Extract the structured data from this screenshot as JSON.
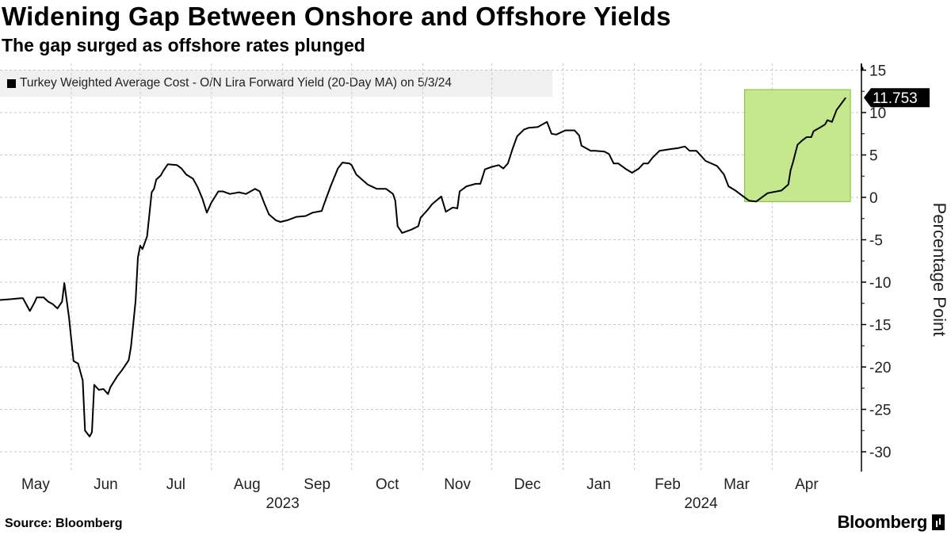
{
  "title": "Widening Gap Between Onshore and Offshore Yields",
  "subtitle": "The gap surged as offshore rates plunged",
  "source": "Source: Bloomberg",
  "logo": "Bloomberg",
  "chart_data": {
    "type": "line",
    "title": "Widening Gap Between Onshore and Offshore Yields",
    "subtitle": "The gap surged as offshore rates plunged",
    "ylabel": "Percentage Point",
    "ylim": [
      -32,
      16
    ],
    "yticks": [
      15,
      10,
      5,
      0,
      -5,
      -10,
      -15,
      -20,
      -25,
      -30
    ],
    "xlim": [
      "2023-05-01",
      "2024-05-13"
    ],
    "xtick_labels": [
      {
        "label": "May",
        "month": "2023-05"
      },
      {
        "label": "Jun",
        "month": "2023-06"
      },
      {
        "label": "Jul",
        "month": "2023-07"
      },
      {
        "label": "Aug",
        "month": "2023-08"
      },
      {
        "label": "Sep",
        "month": "2023-09"
      },
      {
        "label": "Oct",
        "month": "2023-10"
      },
      {
        "label": "Nov",
        "month": "2023-11"
      },
      {
        "label": "Dec",
        "month": "2023-12"
      },
      {
        "label": "Jan",
        "month": "2024-01"
      },
      {
        "label": "Feb",
        "month": "2024-02"
      },
      {
        "label": "Mar",
        "month": "2024-03"
      },
      {
        "label": "Apr",
        "month": "2024-04"
      }
    ],
    "year_labels": [
      {
        "label": "2023",
        "date": "2023-09-01"
      },
      {
        "label": "2024",
        "date": "2024-03-01"
      }
    ],
    "grid": true,
    "legend_position": "top-left",
    "series": [
      {
        "name": "Turkey Weighted Average Cost - O/N Lira Forward Yield (20-Day MA) on 5/3/24",
        "color": "#000000",
        "last_value_label": "11.753",
        "points": [
          [
            "2023-05-01",
            -12.1
          ],
          [
            "2023-05-06",
            -12.0
          ],
          [
            "2023-05-10",
            -11.9
          ],
          [
            "2023-05-11",
            -11.9
          ],
          [
            "2023-05-14",
            -13.4
          ],
          [
            "2023-05-16",
            -12.4
          ],
          [
            "2023-05-17",
            -11.8
          ],
          [
            "2023-05-20",
            -11.8
          ],
          [
            "2023-05-22",
            -12.3
          ],
          [
            "2023-05-24",
            -12.6
          ],
          [
            "2023-05-26",
            -13.1
          ],
          [
            "2023-05-28",
            -12.3
          ],
          [
            "2023-05-29",
            -10.1
          ],
          [
            "2023-05-31",
            -14.1
          ],
          [
            "2023-06-02",
            -19.3
          ],
          [
            "2023-06-04",
            -19.6
          ],
          [
            "2023-06-06",
            -21.6
          ],
          [
            "2023-06-07",
            -27.5
          ],
          [
            "2023-06-09",
            -28.2
          ],
          [
            "2023-06-10",
            -27.7
          ],
          [
            "2023-06-11",
            -22.1
          ],
          [
            "2023-06-13",
            -22.7
          ],
          [
            "2023-06-15",
            -22.6
          ],
          [
            "2023-06-17",
            -23.2
          ],
          [
            "2023-06-18",
            -22.4
          ],
          [
            "2023-06-21",
            -21.1
          ],
          [
            "2023-06-23",
            -20.4
          ],
          [
            "2023-06-26",
            -19.2
          ],
          [
            "2023-06-27",
            -17.6
          ],
          [
            "2023-06-29",
            -12.2
          ],
          [
            "2023-06-30",
            -7.1
          ],
          [
            "2023-07-01",
            -5.7
          ],
          [
            "2023-07-02",
            -6.1
          ],
          [
            "2023-07-04",
            -4.6
          ],
          [
            "2023-07-06",
            0.6
          ],
          [
            "2023-07-07",
            1.0
          ],
          [
            "2023-07-08",
            2.1
          ],
          [
            "2023-07-10",
            2.6
          ],
          [
            "2023-07-11",
            3.1
          ],
          [
            "2023-07-13",
            3.9
          ],
          [
            "2023-07-17",
            3.8
          ],
          [
            "2023-07-19",
            3.4
          ],
          [
            "2023-07-21",
            2.7
          ],
          [
            "2023-07-24",
            2.2
          ],
          [
            "2023-07-26",
            1.2
          ],
          [
            "2023-07-28",
            -0.1
          ],
          [
            "2023-07-30",
            -1.8
          ],
          [
            "2023-08-01",
            -0.6
          ],
          [
            "2023-08-04",
            0.7
          ],
          [
            "2023-08-06",
            0.7
          ],
          [
            "2023-08-09",
            0.4
          ],
          [
            "2023-08-11",
            0.5
          ],
          [
            "2023-08-13",
            0.6
          ],
          [
            "2023-08-16",
            0.4
          ],
          [
            "2023-08-18",
            0.7
          ],
          [
            "2023-08-20",
            1.0
          ],
          [
            "2023-08-22",
            0.7
          ],
          [
            "2023-08-24",
            -0.7
          ],
          [
            "2023-08-26",
            -2.0
          ],
          [
            "2023-08-29",
            -2.7
          ],
          [
            "2023-08-31",
            -2.9
          ],
          [
            "2023-09-03",
            -2.7
          ],
          [
            "2023-09-07",
            -2.3
          ],
          [
            "2023-09-11",
            -2.2
          ],
          [
            "2023-09-14",
            -1.8
          ],
          [
            "2023-09-18",
            -1.6
          ],
          [
            "2023-09-19",
            -0.8
          ],
          [
            "2023-09-22",
            1.4
          ],
          [
            "2023-09-25",
            3.4
          ],
          [
            "2023-09-27",
            4.1
          ],
          [
            "2023-09-30",
            4.0
          ],
          [
            "2023-10-01",
            3.8
          ],
          [
            "2023-10-03",
            2.7
          ],
          [
            "2023-10-08",
            1.5
          ],
          [
            "2023-10-12",
            1.0
          ],
          [
            "2023-10-16",
            1.0
          ],
          [
            "2023-10-19",
            0.4
          ],
          [
            "2023-10-20",
            -0.4
          ],
          [
            "2023-10-21",
            -3.4
          ],
          [
            "2023-10-23",
            -4.2
          ],
          [
            "2023-10-27",
            -3.8
          ],
          [
            "2023-10-30",
            -3.4
          ],
          [
            "2023-10-31",
            -2.4
          ],
          [
            "2023-11-03",
            -1.5
          ],
          [
            "2023-11-05",
            -0.8
          ],
          [
            "2023-11-09",
            0.1
          ],
          [
            "2023-11-11",
            -1.7
          ],
          [
            "2023-11-14",
            -1.2
          ],
          [
            "2023-11-16",
            -1.3
          ],
          [
            "2023-11-17",
            0.7
          ],
          [
            "2023-11-20",
            1.3
          ],
          [
            "2023-11-24",
            1.6
          ],
          [
            "2023-11-26",
            1.6
          ],
          [
            "2023-11-28",
            3.3
          ],
          [
            "2023-12-01",
            3.6
          ],
          [
            "2023-12-04",
            3.8
          ],
          [
            "2023-12-06",
            3.4
          ],
          [
            "2023-12-08",
            4.0
          ],
          [
            "2023-12-10",
            5.7
          ],
          [
            "2023-12-12",
            7.2
          ],
          [
            "2023-12-15",
            8.0
          ],
          [
            "2023-12-17",
            8.2
          ],
          [
            "2023-12-21",
            8.3
          ],
          [
            "2023-12-25",
            8.9
          ],
          [
            "2023-12-27",
            7.5
          ],
          [
            "2023-12-29",
            7.4
          ],
          [
            "2024-01-02",
            7.9
          ],
          [
            "2024-01-06",
            7.9
          ],
          [
            "2024-01-08",
            7.3
          ],
          [
            "2024-01-09",
            6.1
          ],
          [
            "2024-01-13",
            5.5
          ],
          [
            "2024-01-15",
            5.5
          ],
          [
            "2024-01-19",
            5.4
          ],
          [
            "2024-01-21",
            5.1
          ],
          [
            "2024-01-23",
            4.0
          ],
          [
            "2024-01-25",
            4.0
          ],
          [
            "2024-01-28",
            3.4
          ],
          [
            "2024-01-31",
            2.9
          ],
          [
            "2024-02-03",
            3.4
          ],
          [
            "2024-02-05",
            4.0
          ],
          [
            "2024-02-07",
            4.0
          ],
          [
            "2024-02-09",
            4.7
          ],
          [
            "2024-02-12",
            5.5
          ],
          [
            "2024-02-17",
            5.7
          ],
          [
            "2024-02-20",
            5.8
          ],
          [
            "2024-02-23",
            6.0
          ],
          [
            "2024-02-25",
            5.5
          ],
          [
            "2024-02-28",
            5.5
          ],
          [
            "2024-03-03",
            4.3
          ],
          [
            "2024-03-08",
            3.7
          ],
          [
            "2024-03-11",
            2.7
          ],
          [
            "2024-03-13",
            1.3
          ],
          [
            "2024-03-16",
            0.8
          ],
          [
            "2024-03-19",
            0.2
          ],
          [
            "2024-03-22",
            -0.4
          ],
          [
            "2024-03-25",
            -0.5
          ],
          [
            "2024-03-27",
            -0.1
          ],
          [
            "2024-03-30",
            0.5
          ],
          [
            "2024-04-05",
            0.8
          ],
          [
            "2024-04-08",
            1.5
          ],
          [
            "2024-04-09",
            3.2
          ],
          [
            "2024-04-10",
            4.1
          ],
          [
            "2024-04-12",
            6.2
          ],
          [
            "2024-04-14",
            6.7
          ],
          [
            "2024-04-16",
            7.1
          ],
          [
            "2024-04-18",
            7.1
          ],
          [
            "2024-04-19",
            7.8
          ],
          [
            "2024-04-21",
            8.1
          ],
          [
            "2024-04-24",
            8.6
          ],
          [
            "2024-04-25",
            9.1
          ],
          [
            "2024-04-27",
            8.9
          ],
          [
            "2024-04-29",
            10.3
          ],
          [
            "2024-05-03",
            11.753
          ]
        ]
      }
    ],
    "highlight": {
      "x_from": "2024-03-20",
      "x_to": "2024-05-05",
      "y_from": -0.5,
      "y_to": 12.7,
      "color": "#c5e88f",
      "border": "#8cc63f"
    }
  }
}
